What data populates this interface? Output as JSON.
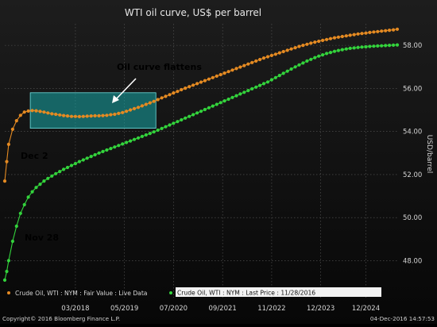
{
  "chart_data": {
    "type": "line",
    "title": "WTI oil curve, US$ per barrel",
    "ylabel": "USD/barrel",
    "ylim": [
      46.8,
      59.0
    ],
    "yticks": [
      48,
      50,
      52,
      54,
      56,
      58
    ],
    "ytick_labels": [
      "48.00",
      "50.00",
      "52.00",
      "54.00",
      "56.00",
      "58.00"
    ],
    "xlim": [
      0,
      100
    ],
    "xticks": [
      {
        "x": 18,
        "label": "03/2018"
      },
      {
        "x": 30.5,
        "label": "05/2019"
      },
      {
        "x": 43,
        "label": "07/2020"
      },
      {
        "x": 55.5,
        "label": "09/2021"
      },
      {
        "x": 68,
        "label": "11/2022"
      },
      {
        "x": 80.5,
        "label": "12/2023"
      },
      {
        "x": 92,
        "label": "12/2024"
      }
    ],
    "grid": true,
    "legend_position": "bottom-left",
    "series": [
      {
        "name": "Crude Oil, WTI : NYM : Fair Value : Live Data",
        "color": "#e48a22",
        "x": [
          0,
          0.5,
          1,
          2,
          3,
          4,
          5,
          6,
          7,
          8,
          9,
          10,
          11,
          12,
          13,
          14,
          15,
          16,
          17,
          18,
          19,
          20,
          21,
          22,
          23,
          24,
          25,
          26,
          27,
          28,
          29,
          30,
          31,
          32,
          33,
          34,
          35,
          36,
          37,
          38,
          39,
          40,
          41,
          42,
          43,
          44,
          45,
          46,
          47,
          48,
          49,
          50,
          51,
          52,
          53,
          54,
          55,
          56,
          57,
          58,
          59,
          60,
          61,
          62,
          63,
          64,
          65,
          66,
          67,
          68,
          69,
          70,
          71,
          72,
          73,
          74,
          75,
          76,
          77,
          78,
          79,
          80,
          81,
          82,
          83,
          84,
          85,
          86,
          87,
          88,
          89,
          90,
          91,
          92,
          93,
          94,
          95,
          96,
          97,
          98,
          99,
          100
        ],
        "values": [
          51.7,
          52.6,
          53.4,
          54.1,
          54.5,
          54.75,
          54.9,
          54.95,
          54.97,
          54.96,
          54.93,
          54.9,
          54.86,
          54.82,
          54.8,
          54.77,
          54.74,
          54.72,
          54.7,
          54.7,
          54.69,
          54.7,
          54.71,
          54.72,
          54.73,
          54.73,
          54.74,
          54.75,
          54.78,
          54.8,
          54.84,
          54.88,
          54.94,
          55.0,
          55.06,
          55.12,
          55.19,
          55.26,
          55.33,
          55.4,
          55.48,
          55.56,
          55.63,
          55.71,
          55.79,
          55.86,
          55.94,
          56.01,
          56.08,
          56.15,
          56.22,
          56.29,
          56.36,
          56.43,
          56.5,
          56.57,
          56.64,
          56.71,
          56.78,
          56.85,
          56.92,
          56.99,
          57.06,
          57.13,
          57.2,
          57.27,
          57.34,
          57.41,
          57.47,
          57.53,
          57.59,
          57.65,
          57.71,
          57.77,
          57.83,
          57.89,
          57.95,
          58.0,
          58.05,
          58.1,
          58.15,
          58.19,
          58.23,
          58.27,
          58.31,
          58.35,
          58.38,
          58.41,
          58.44,
          58.47,
          58.5,
          58.53,
          58.55,
          58.57,
          58.6,
          58.62,
          58.64,
          58.66,
          58.68,
          58.7,
          58.72,
          58.75
        ]
      },
      {
        "name": "Crude Oil, WTI : NYM : Last Price : 11/28/2016",
        "color": "#33d33c",
        "x": [
          0,
          0.5,
          1,
          2,
          3,
          4,
          5,
          6,
          7,
          8,
          9,
          10,
          11,
          12,
          13,
          14,
          15,
          16,
          17,
          18,
          19,
          20,
          21,
          22,
          23,
          24,
          25,
          26,
          27,
          28,
          29,
          30,
          31,
          32,
          33,
          34,
          35,
          36,
          37,
          38,
          39,
          40,
          41,
          42,
          43,
          44,
          45,
          46,
          47,
          48,
          49,
          50,
          51,
          52,
          53,
          54,
          55,
          56,
          57,
          58,
          59,
          60,
          61,
          62,
          63,
          64,
          65,
          66,
          67,
          68,
          69,
          70,
          71,
          72,
          73,
          74,
          75,
          76,
          77,
          78,
          79,
          80,
          81,
          82,
          83,
          84,
          85,
          86,
          87,
          88,
          89,
          90,
          91,
          92,
          93,
          94,
          95,
          96,
          97,
          98,
          99,
          100
        ],
        "values": [
          47.1,
          47.5,
          48.0,
          48.9,
          49.6,
          50.2,
          50.6,
          50.95,
          51.2,
          51.4,
          51.55,
          51.7,
          51.82,
          51.93,
          52.04,
          52.14,
          52.24,
          52.33,
          52.42,
          52.51,
          52.6,
          52.68,
          52.76,
          52.84,
          52.92,
          53.0,
          53.07,
          53.14,
          53.21,
          53.28,
          53.35,
          53.42,
          53.49,
          53.56,
          53.63,
          53.7,
          53.77,
          53.84,
          53.91,
          53.98,
          54.06,
          54.14,
          54.22,
          54.3,
          54.38,
          54.46,
          54.54,
          54.62,
          54.7,
          54.78,
          54.86,
          54.94,
          55.02,
          55.1,
          55.18,
          55.26,
          55.34,
          55.42,
          55.5,
          55.58,
          55.66,
          55.74,
          55.82,
          55.9,
          55.98,
          56.06,
          56.14,
          56.22,
          56.3,
          56.4,
          56.5,
          56.6,
          56.7,
          56.8,
          56.9,
          57.0,
          57.09,
          57.18,
          57.27,
          57.35,
          57.43,
          57.5,
          57.56,
          57.62,
          57.67,
          57.72,
          57.76,
          57.8,
          57.83,
          57.86,
          57.88,
          57.9,
          57.92,
          57.93,
          57.95,
          57.96,
          57.97,
          57.98,
          57.99,
          58.0,
          58.01,
          58.02
        ]
      }
    ],
    "annotations": [
      {
        "text": "Oil curve flattens",
        "color": "#ffffff"
      },
      {
        "text": "Dec 2",
        "color": "#e48a22"
      },
      {
        "text": "Nov 28",
        "color": "#33d33c"
      }
    ],
    "highlight_box": {
      "x0": 6.5,
      "x1": 38.5,
      "y0": 54.15,
      "y1": 55.8,
      "fill": "#18a8a8"
    }
  },
  "footer": {
    "copyright": "Copyright© 2016 Bloomberg Finance L.P.",
    "timestamp": "04-Dec-2016 14:57:53"
  }
}
